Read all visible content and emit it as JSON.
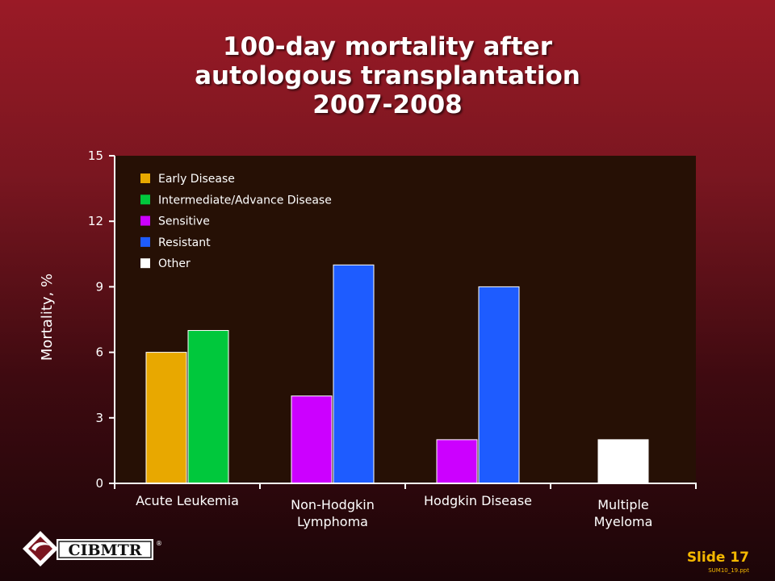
{
  "title_lines": [
    "100-day mortality after",
    "autologous transplantation",
    "2007-2008"
  ],
  "logo_text": "CIBMTR",
  "logo_mark": "®",
  "slide_label": "Slide 17",
  "file_code": "SUM10_19.ppt",
  "colors": {
    "plot_bg": "#261005",
    "axis": "#ffffff",
    "text": "#ffffff",
    "accent_yellow": "#f5b800"
  },
  "chart_data": {
    "type": "bar",
    "ylabel": "Mortality, %",
    "xlabel": "",
    "ylim": [
      0,
      15
    ],
    "yticks": [
      0,
      3,
      6,
      9,
      12,
      15
    ],
    "grid": false,
    "legend_position": "top-left",
    "categories": [
      {
        "label": "Acute Leukemia",
        "lines": [
          "Acute Leukemia"
        ]
      },
      {
        "label": "Non-Hodgkin Lymphoma",
        "lines": [
          "Non-Hodgkin",
          "Lymphoma"
        ]
      },
      {
        "label": "Hodgkin Disease",
        "lines": [
          "Hodgkin Disease"
        ]
      },
      {
        "label": "Multiple Myeloma",
        "lines": [
          "Multiple",
          "Myeloma"
        ]
      }
    ],
    "series": [
      {
        "name": "Early Disease",
        "color": "#e8a800",
        "values": [
          6,
          null,
          null,
          null
        ]
      },
      {
        "name": "Intermediate/Advance Disease",
        "color": "#00c83c",
        "values": [
          7,
          null,
          null,
          null
        ]
      },
      {
        "name": "Sensitive",
        "color": "#cc00ff",
        "values": [
          null,
          4,
          2,
          null
        ]
      },
      {
        "name": "Resistant",
        "color": "#1e5cff",
        "values": [
          null,
          10,
          9,
          null
        ]
      },
      {
        "name": "Other",
        "color": "#ffffff",
        "values": [
          null,
          null,
          null,
          2
        ]
      }
    ]
  }
}
